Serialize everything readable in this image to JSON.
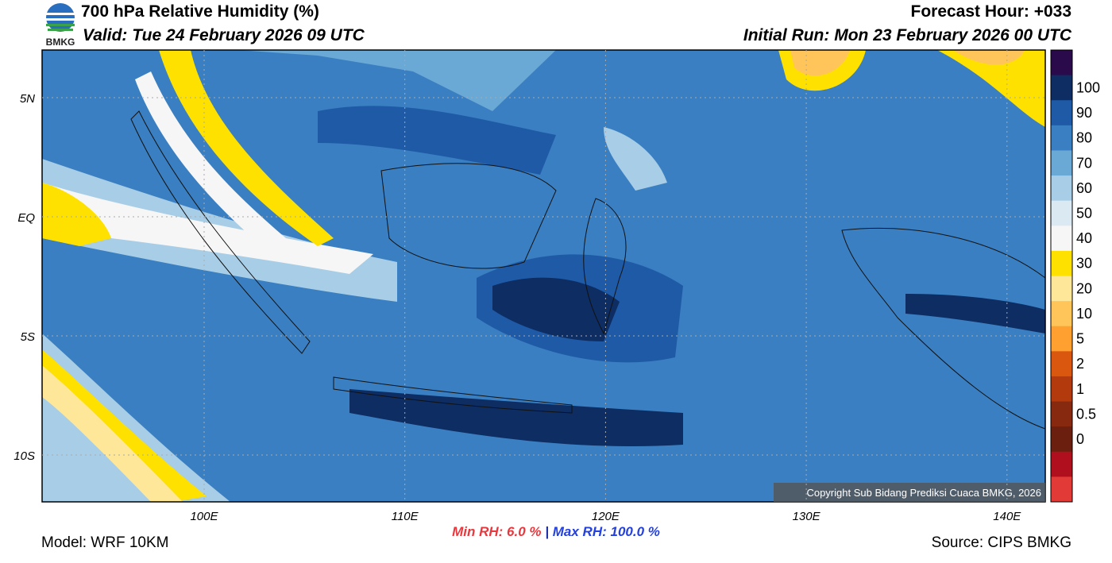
{
  "header": {
    "title": "700 hPa Relative Humidity (%)",
    "valid": "Valid: Tue 24 February 2026 09 UTC",
    "forecast": "Forecast Hour: +033",
    "initial": "Initial Run: Mon 23 February 2026 00 UTC",
    "logo": "BMKG"
  },
  "map": {
    "lat_labels": [
      "5N",
      "EQ",
      "5S",
      "10S"
    ],
    "lon_labels": [
      "100E",
      "110E",
      "120E",
      "130E",
      "140E"
    ],
    "copyright": "Copyright Sub Bidang Prediksi Cuaca BMKG, 2026"
  },
  "colorbar": {
    "colors": [
      "#2a0a4a",
      "#0d2d63",
      "#1f5aa6",
      "#3a7fc1",
      "#6aa8d6",
      "#a8cde6",
      "#dbe9f3",
      "#f6f6f6",
      "#ffe100",
      "#ffe79a",
      "#ffc45a",
      "#ffa030",
      "#d9570f",
      "#b23a0c",
      "#87290f",
      "#6a1f0f",
      "#b0101e",
      "#e23a36"
    ],
    "labels": [
      "100",
      "90",
      "80",
      "70",
      "60",
      "50",
      "40",
      "30",
      "20",
      "10",
      "5",
      "2",
      "1",
      "0.5",
      "0"
    ]
  },
  "footer": {
    "model": "Model: WRF 10KM",
    "min_label": "Min RH:",
    "min_value": "6.0 %",
    "separator": "|",
    "max_label": "Max RH:",
    "max_value": "100.0 %",
    "source": "Source: CIPS BMKG"
  }
}
